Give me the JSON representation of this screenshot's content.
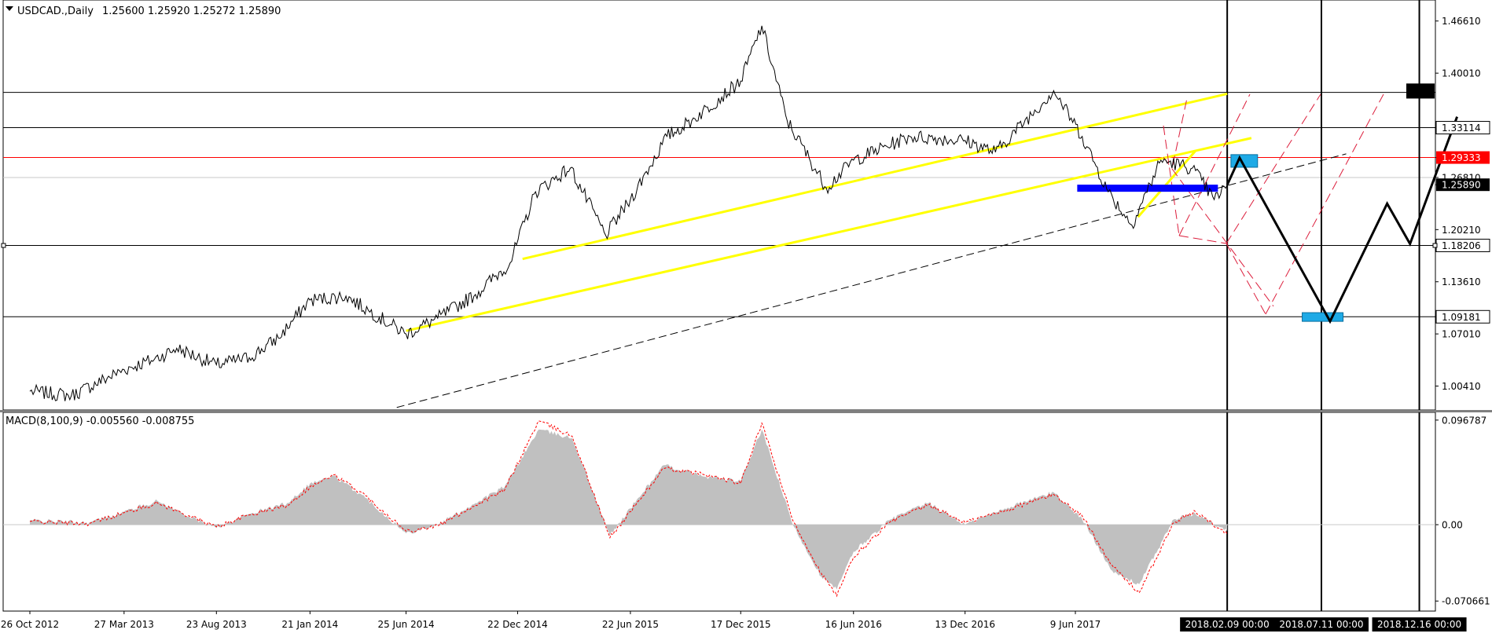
{
  "header": {
    "symbol_label": "USDCAD.,Daily",
    "ohlc": "1.25600 1.25920 1.25272 1.25890"
  },
  "macd_header": "MACD(8,100,9) -0.005560 -0.008755",
  "colors": {
    "price_line": "#000000",
    "trend_yellow": "#ffff00",
    "red_level": "#ff0000",
    "zone_blue": "#0000ff",
    "zone_cyan": "#1eaae6",
    "channel_red": "#dc1e3c",
    "macd_hist": "#c0c0c0",
    "macd_signal": "#ff0000"
  },
  "chart_data": [
    {
      "type": "line",
      "series": [
        {
          "name": "USDCAD",
          "values": [
            [
              "2012-10-26",
              0.9975
            ],
            [
              "2013-01-01",
              0.992
            ],
            [
              "2013-03-27",
              1.025
            ],
            [
              "2013-05-15",
              1.038
            ],
            [
              "2013-06-20",
              1.052
            ],
            [
              "2013-08-23",
              1.031
            ],
            [
              "2013-10-15",
              1.04
            ],
            [
              "2013-12-01",
              1.065
            ],
            [
              "2014-01-21",
              1.113
            ],
            [
              "2014-03-20",
              1.118
            ],
            [
              "2014-04-25",
              1.1
            ],
            [
              "2014-06-25",
              1.07
            ],
            [
              "2014-08-15",
              1.09
            ],
            [
              "2014-10-15",
              1.12
            ],
            [
              "2014-12-10",
              1.16
            ],
            [
              "2015-01-20",
              1.25
            ],
            [
              "2015-03-17",
              1.28
            ],
            [
              "2015-05-13",
              1.195
            ],
            [
              "2015-06-22",
              1.24
            ],
            [
              "2015-08-20",
              1.32
            ],
            [
              "2015-09-29",
              1.34
            ],
            [
              "2015-12-17",
              1.39
            ],
            [
              "2016-01-20",
              1.46
            ],
            [
              "2016-03-01",
              1.34
            ],
            [
              "2016-05-03",
              1.255
            ],
            [
              "2016-06-16",
              1.29
            ],
            [
              "2016-09-15",
              1.32
            ],
            [
              "2016-12-13",
              1.315
            ],
            [
              "2017-01-31",
              1.3
            ],
            [
              "2017-05-05",
              1.378
            ],
            [
              "2017-06-20",
              1.32
            ],
            [
              "2017-08-01",
              1.25
            ],
            [
              "2017-09-08",
              1.208
            ],
            [
              "2017-10-25",
              1.29
            ],
            [
              "2017-12-15",
              1.28
            ],
            [
              "2018-01-19",
              1.24
            ],
            [
              "2018-02-09",
              1.2589
            ]
          ]
        }
      ],
      "hlines": [
        1.37576,
        1.33114,
        1.29333,
        1.2681,
        1.18206,
        1.09181
      ],
      "red_level": 1.29333,
      "ylim": [
        0.9748,
        1.4907
      ],
      "y_tick_labels": [
        "1.46610",
        "1.40010",
        "1.33114",
        "1.29333",
        "1.26810",
        "1.25890",
        "1.20210",
        "1.18206",
        "1.13610",
        "1.09181",
        "1.07010",
        "1.00410"
      ],
      "y_tick_values": [
        1.4661,
        1.4001,
        1.33114,
        1.29333,
        1.2681,
        1.2589,
        1.2021,
        1.18206,
        1.1361,
        1.09181,
        1.0701,
        1.0041
      ],
      "highlighted_labels": {
        "1.37576": "black",
        "1.33114": "white",
        "1.29333": "red",
        "1.25890": "black",
        "1.18206": "white",
        "1.09181": "white"
      },
      "x_tick_labels": [
        "26 Oct 2012",
        "27 Mar 2013",
        "23 Aug 2013",
        "21 Jan 2014",
        "25 Jun 2014",
        "22 Dec 2014",
        "22 Jun 2015",
        "17 Dec 2015",
        "16 Jun 2016",
        "13 Dec 2016",
        "9 Jun 2017"
      ],
      "x_tick_dates": [
        "2012-10-26",
        "2013-03-27",
        "2013-08-23",
        "2014-01-21",
        "2014-06-25",
        "2014-12-22",
        "2015-06-22",
        "2015-12-17",
        "2016-06-16",
        "2016-12-13",
        "2017-06-09"
      ],
      "x_highlight_labels": [
        "2018.02.09 00:00",
        "2018.07.11 00:00",
        "2018.12.16 00:00"
      ],
      "x_highlight_dates": [
        "2018-02-09",
        "2018-07-11",
        "2018-12-16"
      ],
      "projection": [
        [
          "2018-02-09",
          1.2589
        ],
        [
          "2018-03-01",
          1.293
        ],
        [
          "2018-07-25",
          1.086
        ],
        [
          "2018-10-25",
          1.235
        ],
        [
          "2018-12-01",
          1.184
        ],
        [
          "2019-02-15",
          1.345
        ]
      ],
      "yellow_lines": [
        [
          [
            "2014-12-30",
            1.165
          ],
          [
            "2018-02-09",
            1.374
          ]
        ],
        [
          [
            "2014-06-25",
            1.074
          ],
          [
            "2018-03-20",
            1.318
          ]
        ],
        [
          [
            "2017-09-18",
            1.218
          ],
          [
            "2017-12-20",
            1.302
          ]
        ]
      ],
      "dashed_trend": [
        [
          "2014-06-10",
          0.977
        ],
        [
          "2018-08-20",
          1.298
        ]
      ],
      "blue_zone": [
        [
          "2017-06-12",
          1.259
        ],
        [
          "2018-01-25",
          1.25
        ]
      ],
      "cyan_zones": [
        [
          [
            "2018-02-15",
            1.297
          ],
          [
            "2018-03-30",
            1.281
          ]
        ],
        [
          [
            "2018-06-10",
            1.097
          ],
          [
            "2018-08-15",
            1.086
          ]
        ]
      ],
      "black_marker": [
        "2018-11-25",
        1.387,
        1.368
      ]
    },
    {
      "type": "area",
      "title": "MACD(8,100,9) -0.005560 -0.008755",
      "ylim": [
        -0.0785,
        0.1025
      ],
      "y_tick_labels": [
        "0.096787",
        "0.00",
        "-0.070661"
      ],
      "y_tick_values": [
        0.096787,
        0.0,
        -0.070661
      ],
      "series": [
        {
          "name": "MACD",
          "values": [
            [
              "2012-10-26",
              0.004
            ],
            [
              "2013-01-30",
              0.002
            ],
            [
              "2013-03-27",
              0.012
            ],
            [
              "2013-05-20",
              0.022
            ],
            [
              "2013-07-15",
              0.006
            ],
            [
              "2013-08-23",
              -0.003
            ],
            [
              "2013-10-15",
              0.01
            ],
            [
              "2013-12-15",
              0.02
            ],
            [
              "2014-01-21",
              0.038
            ],
            [
              "2014-03-01",
              0.045
            ],
            [
              "2014-04-20",
              0.025
            ],
            [
              "2014-06-25",
              -0.008
            ],
            [
              "2014-08-15",
              0.0
            ],
            [
              "2014-10-15",
              0.02
            ],
            [
              "2014-12-01",
              0.035
            ],
            [
              "2015-01-25",
              0.088
            ],
            [
              "2015-03-20",
              0.08
            ],
            [
              "2015-05-20",
              -0.01
            ],
            [
              "2015-06-22",
              0.015
            ],
            [
              "2015-08-15",
              0.055
            ],
            [
              "2015-10-15",
              0.045
            ],
            [
              "2015-12-17",
              0.04
            ],
            [
              "2016-01-20",
              0.088
            ],
            [
              "2016-03-10",
              0.0
            ],
            [
              "2016-04-25",
              -0.048
            ],
            [
              "2016-05-20",
              -0.06
            ],
            [
              "2016-06-16",
              -0.025
            ],
            [
              "2016-08-15",
              0.005
            ],
            [
              "2016-10-15",
              0.02
            ],
            [
              "2016-12-13",
              0.0
            ],
            [
              "2017-02-15",
              0.015
            ],
            [
              "2017-05-05",
              0.03
            ],
            [
              "2017-06-20",
              0.005
            ],
            [
              "2017-08-10",
              -0.045
            ],
            [
              "2017-09-20",
              -0.055
            ],
            [
              "2017-11-15",
              0.005
            ],
            [
              "2017-12-20",
              0.01
            ],
            [
              "2018-02-09",
              -0.006
            ]
          ]
        },
        {
          "name": "Signal",
          "values": [
            [
              "2012-10-26",
              0.003
            ],
            [
              "2013-01-30",
              0.001
            ],
            [
              "2013-03-27",
              0.011
            ],
            [
              "2013-05-20",
              0.02
            ],
            [
              "2013-07-15",
              0.007
            ],
            [
              "2013-08-23",
              -0.002
            ],
            [
              "2013-10-15",
              0.009
            ],
            [
              "2013-12-15",
              0.018
            ],
            [
              "2014-01-21",
              0.035
            ],
            [
              "2014-03-01",
              0.046
            ],
            [
              "2014-04-20",
              0.027
            ],
            [
              "2014-06-25",
              -0.006
            ],
            [
              "2014-08-15",
              -0.001
            ],
            [
              "2014-10-15",
              0.018
            ],
            [
              "2014-12-01",
              0.032
            ],
            [
              "2015-01-25",
              0.096
            ],
            [
              "2015-03-20",
              0.082
            ],
            [
              "2015-05-20",
              -0.012
            ],
            [
              "2015-06-22",
              0.012
            ],
            [
              "2015-08-15",
              0.052
            ],
            [
              "2015-10-15",
              0.047
            ],
            [
              "2015-12-17",
              0.038
            ],
            [
              "2016-01-20",
              0.094
            ],
            [
              "2016-03-10",
              0.004
            ],
            [
              "2016-04-25",
              -0.045
            ],
            [
              "2016-05-20",
              -0.066
            ],
            [
              "2016-06-16",
              -0.03
            ],
            [
              "2016-08-15",
              0.003
            ],
            [
              "2016-10-15",
              0.018
            ],
            [
              "2016-12-13",
              0.002
            ],
            [
              "2017-02-15",
              0.013
            ],
            [
              "2017-05-05",
              0.028
            ],
            [
              "2017-06-20",
              0.008
            ],
            [
              "2017-08-10",
              -0.04
            ],
            [
              "2017-09-20",
              -0.063
            ],
            [
              "2017-11-15",
              0.002
            ],
            [
              "2017-12-20",
              0.012
            ],
            [
              "2018-02-09",
              -0.0088
            ]
          ]
        }
      ]
    }
  ]
}
